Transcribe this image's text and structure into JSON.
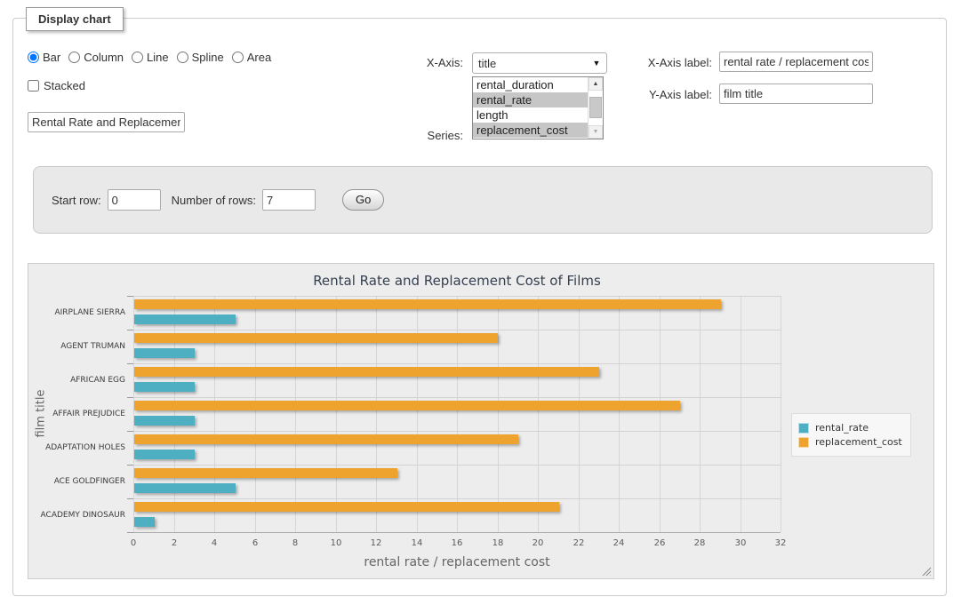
{
  "panel": {
    "legend": "Display chart"
  },
  "icons": {
    "dropdown_arrow": "▼",
    "scroll_up": "▲",
    "scroll_down": "▼"
  },
  "chart_type": {
    "options": [
      {
        "label": "Bar",
        "selected": true
      },
      {
        "label": "Column",
        "selected": false
      },
      {
        "label": "Line",
        "selected": false
      },
      {
        "label": "Spline",
        "selected": false
      },
      {
        "label": "Area",
        "selected": false
      }
    ]
  },
  "stacked": {
    "label": "Stacked",
    "checked": false
  },
  "title_input": {
    "value": "Rental Rate and Replacement Cost of Films"
  },
  "x_axis": {
    "label": "X-Axis:",
    "value": "title"
  },
  "series_select": {
    "label": "Series:",
    "options": [
      {
        "label": "rental_duration",
        "selected": false
      },
      {
        "label": "rental_rate",
        "selected": true
      },
      {
        "label": "length",
        "selected": false
      },
      {
        "label": "replacement_cost",
        "selected": true
      }
    ]
  },
  "x_axis_label": {
    "label": "X-Axis label:",
    "value": "rental rate / replacement cost"
  },
  "y_axis_label": {
    "label": "Y-Axis label:",
    "value": "film title"
  },
  "row_controls": {
    "start_row_label": "Start row:",
    "start_row_value": "0",
    "num_rows_label": "Number of rows:",
    "num_rows_value": "7",
    "go_label": "Go"
  },
  "chart_data": {
    "type": "bar",
    "title": "Rental Rate and Replacement Cost of Films",
    "categories": [
      "AIRPLANE SIERRA",
      "AGENT TRUMAN",
      "AFRICAN EGG",
      "AFFAIR PREJUDICE",
      "ADAPTATION HOLES",
      "ACE GOLDFINGER",
      "ACADEMY DINOSAUR"
    ],
    "series": [
      {
        "name": "rental_rate",
        "color": "#4FAFC2",
        "values": [
          4.99,
          2.99,
          2.99,
          2.99,
          2.99,
          4.99,
          0.99
        ]
      },
      {
        "name": "replacement_cost",
        "color": "#EEA32E",
        "values": [
          28.99,
          17.99,
          22.99,
          26.99,
          18.99,
          12.99,
          20.99
        ]
      }
    ],
    "xlabel": "rental rate / replacement cost",
    "ylabel": "film title",
    "xlim": [
      0,
      32
    ],
    "xticks": [
      0,
      2,
      4,
      6,
      8,
      10,
      12,
      14,
      16,
      18,
      20,
      22,
      24,
      26,
      28,
      30,
      32
    ],
    "grid": true,
    "legend_position": "right"
  }
}
